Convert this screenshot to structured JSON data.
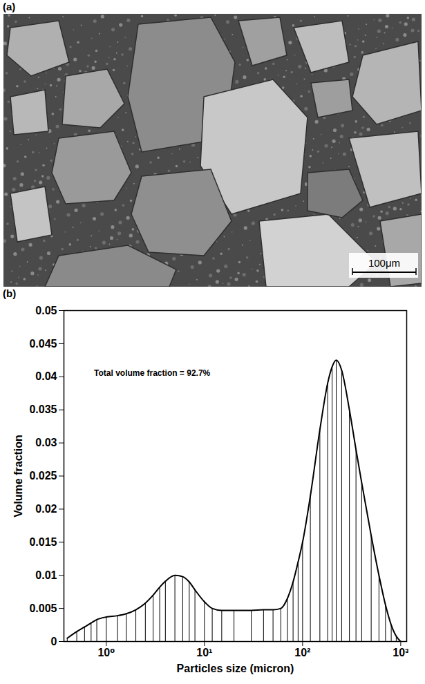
{
  "image": {
    "panel_label": "(a)",
    "scale_bar": "100μm"
  },
  "chart_data": {
    "type": "bar",
    "panel_label": "(b)",
    "x_label": "Particles size (micron)",
    "y_label": "Volume fraction",
    "log": "x",
    "color": "#000000",
    "annotations": [
      {
        "text": "Total volume fraction = 92.7%",
        "x": 0.75,
        "y": 0.0405
      }
    ],
    "x": [
      0.4,
      0.5,
      0.6,
      0.7,
      0.8,
      1.0,
      1.3,
      1.6,
      2.0,
      2.5,
      3.0,
      3.5,
      4.0,
      5.0,
      6.0,
      7.0,
      8.0,
      10,
      12,
      15,
      20,
      30,
      40,
      50,
      60,
      70,
      80,
      90,
      100,
      120,
      150,
      180,
      200,
      220,
      250,
      300,
      350,
      400,
      500,
      600,
      700,
      800,
      900,
      1000
    ],
    "values": [
      0.0005,
      0.0015,
      0.0022,
      0.0028,
      0.0033,
      0.0037,
      0.0039,
      0.0042,
      0.0048,
      0.0058,
      0.007,
      0.0082,
      0.0091,
      0.01,
      0.0098,
      0.009,
      0.0078,
      0.006,
      0.005,
      0.0047,
      0.0047,
      0.0047,
      0.0048,
      0.0048,
      0.005,
      0.0065,
      0.009,
      0.012,
      0.015,
      0.022,
      0.032,
      0.039,
      0.0415,
      0.0425,
      0.041,
      0.035,
      0.029,
      0.024,
      0.016,
      0.01,
      0.0055,
      0.0025,
      0.0008,
      0
    ],
    "xlim": [
      0.37,
      1150
    ],
    "xticks": [
      {
        "value": 1,
        "label": "10⁰"
      },
      {
        "value": 10,
        "label": "10¹"
      },
      {
        "value": 100,
        "label": "10²"
      },
      {
        "value": 1000,
        "label": "10³"
      }
    ],
    "ylim": [
      0,
      0.05
    ],
    "yticks": [
      0,
      0.005,
      0.01,
      0.015,
      0.02,
      0.025,
      0.03,
      0.035,
      0.04,
      0.045,
      0.05
    ],
    "grid": false
  }
}
